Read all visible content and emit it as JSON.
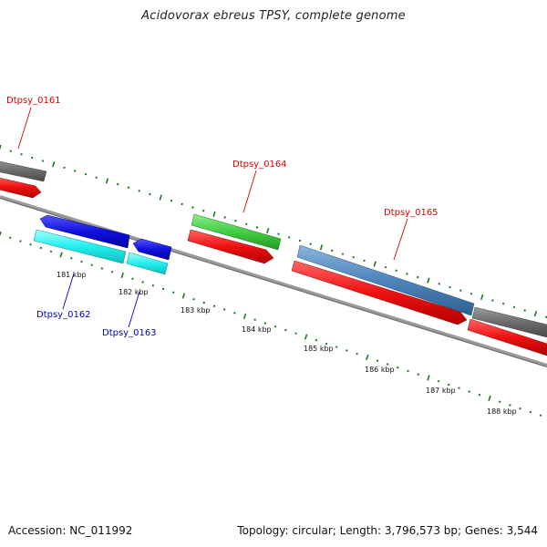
{
  "title": "Acidovorax ebreus TPSY, complete genome",
  "footer": {
    "accession": "Accession: NC_011992",
    "summary": "Topology: circular; Length: 3,796,573 bp; Genes: 3,544"
  },
  "colors": {
    "backbone": "#8a8a8a",
    "tick": "#1a7a1a",
    "gray_gene": "#707070",
    "red_gene": "#ee1111",
    "blue_gene": "#1010dd",
    "cyan_gene": "#22eeee",
    "green_gene": "#44cc44",
    "steelblue_gene": "#4f84bb",
    "label_red": "#dd0000",
    "label_blue": "#0000cc"
  },
  "scale_labels": [
    "181 kbp",
    "182 kbp",
    "183 kbp",
    "184 kbp",
    "185 kbp",
    "186 kbp",
    "187 kbp",
    "188 kbp"
  ],
  "gene_labels": {
    "dtpsy_0161": "Dtpsy_0161",
    "dtpsy_0162": "Dtpsy_0162",
    "dtpsy_0163": "Dtpsy_0163",
    "dtpsy_0164": "Dtpsy_0164",
    "dtpsy_0165": "Dtpsy_0165"
  }
}
